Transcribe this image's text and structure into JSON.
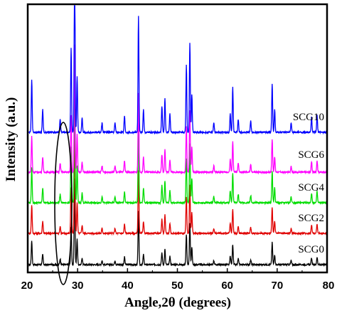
{
  "chart_data": {
    "type": "line",
    "xlabel": "Angle,2θ (degrees)",
    "ylabel": "Intensity (a.u.)",
    "xlim": [
      20,
      80
    ],
    "x_ticks": [
      "20",
      "30",
      "40",
      "50",
      "60",
      "70",
      "80"
    ],
    "y_ticks_shown": false,
    "grid": false,
    "legend": "inline labels at right, next to each trace",
    "annotation": "ellipse around ~26-28° on all traces",
    "peaks": [
      {
        "x": 20.8,
        "h": 0.28
      },
      {
        "x": 23.0,
        "h": 0.12
      },
      {
        "x": 26.5,
        "h": 0.07
      },
      {
        "x": 28.7,
        "h": 0.45
      },
      {
        "x": 29.4,
        "h": 1.0
      },
      {
        "x": 29.9,
        "h": 0.3
      },
      {
        "x": 30.9,
        "h": 0.08
      },
      {
        "x": 34.9,
        "h": 0.05
      },
      {
        "x": 37.5,
        "h": 0.05
      },
      {
        "x": 39.4,
        "h": 0.09
      },
      {
        "x": 42.2,
        "h": 0.62
      },
      {
        "x": 43.2,
        "h": 0.12
      },
      {
        "x": 46.9,
        "h": 0.14
      },
      {
        "x": 47.5,
        "h": 0.18
      },
      {
        "x": 48.5,
        "h": 0.1
      },
      {
        "x": 51.8,
        "h": 0.36
      },
      {
        "x": 52.5,
        "h": 0.48
      },
      {
        "x": 52.9,
        "h": 0.2
      },
      {
        "x": 57.3,
        "h": 0.05
      },
      {
        "x": 60.6,
        "h": 0.1
      },
      {
        "x": 61.1,
        "h": 0.24
      },
      {
        "x": 62.2,
        "h": 0.07
      },
      {
        "x": 64.7,
        "h": 0.06
      },
      {
        "x": 69.0,
        "h": 0.26
      },
      {
        "x": 69.5,
        "h": 0.12
      },
      {
        "x": 72.8,
        "h": 0.05
      },
      {
        "x": 76.9,
        "h": 0.08
      },
      {
        "x": 78.0,
        "h": 0.09
      }
    ],
    "series": [
      {
        "name": "SCG0",
        "color": "#000000",
        "offset": 0,
        "scale": 1.0
      },
      {
        "name": "SCG2",
        "color": "#e00000",
        "offset": 44,
        "scale": 1.2
      },
      {
        "name": "SCG4",
        "color": "#00dd00",
        "offset": 87,
        "scale": 1.45
      },
      {
        "name": "SCG6",
        "color": "#ff00ff",
        "offset": 130,
        "scale": 1.5
      },
      {
        "name": "SCG10",
        "color": "#0000ff",
        "offset": 186,
        "scale": 2.2
      }
    ]
  }
}
